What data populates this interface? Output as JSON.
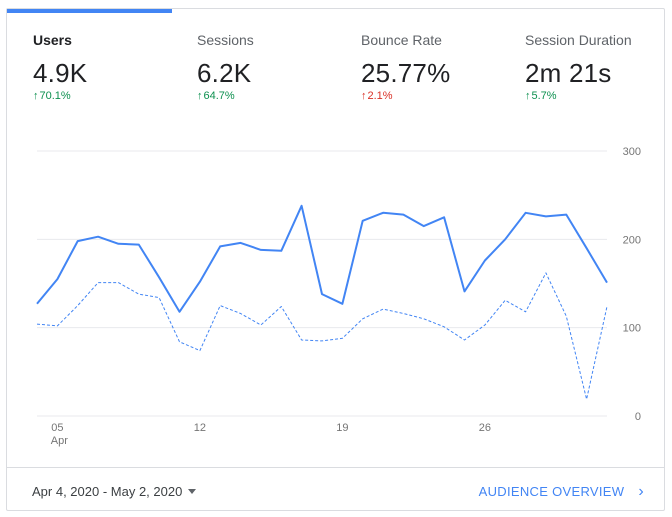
{
  "metrics": [
    {
      "label": "Users",
      "value": "4.9K",
      "delta": "70.1%",
      "direction": "up",
      "active": true
    },
    {
      "label": "Sessions",
      "value": "6.2K",
      "delta": "64.7%",
      "direction": "up",
      "active": false
    },
    {
      "label": "Bounce Rate",
      "value": "25.77%",
      "delta": "2.1%",
      "direction": "up_bad",
      "active": false
    },
    {
      "label": "Session Duration",
      "value": "2m 21s",
      "delta": "5.7%",
      "direction": "up",
      "active": false
    }
  ],
  "colors": {
    "accent": "#4285f4",
    "positive": "#0d904f",
    "negative": "#d93025",
    "grid": "#e8eaed"
  },
  "chart_data": {
    "type": "line",
    "x": [
      "Apr 4",
      "Apr 5",
      "Apr 6",
      "Apr 7",
      "Apr 8",
      "Apr 9",
      "Apr 10",
      "Apr 11",
      "Apr 12",
      "Apr 13",
      "Apr 14",
      "Apr 15",
      "Apr 16",
      "Apr 17",
      "Apr 18",
      "Apr 19",
      "Apr 20",
      "Apr 21",
      "Apr 22",
      "Apr 23",
      "Apr 24",
      "Apr 25",
      "Apr 26",
      "Apr 27",
      "Apr 28",
      "Apr 29",
      "Apr 30",
      "May 1",
      "May 2"
    ],
    "x_tick_labels": [
      {
        "label": "05",
        "sublabel": "Apr",
        "index": 1
      },
      {
        "label": "12",
        "sublabel": "",
        "index": 8
      },
      {
        "label": "19",
        "sublabel": "",
        "index": 15
      },
      {
        "label": "26",
        "sublabel": "",
        "index": 22
      }
    ],
    "y_ticks": [
      "0",
      "100",
      "200",
      "300"
    ],
    "ylim": [
      0,
      300
    ],
    "grid": true,
    "series": [
      {
        "name": "",
        "style": "solid",
        "values": [
          127,
          155,
          198,
          203,
          195,
          194,
          157,
          118,
          152,
          192,
          196,
          188,
          187,
          238,
          138,
          127,
          221,
          230,
          228,
          215,
          225,
          141,
          176,
          200,
          230,
          226,
          228,
          190,
          151
        ]
      },
      {
        "name": "",
        "style": "dashed",
        "values": [
          104,
          102,
          125,
          151,
          151,
          138,
          134,
          84,
          74,
          125,
          116,
          103,
          124,
          86,
          85,
          88,
          110,
          121,
          116,
          110,
          101,
          86,
          103,
          131,
          118,
          162,
          113,
          19,
          124
        ]
      }
    ]
  },
  "footer": {
    "date_range": "Apr 4, 2020 - May 2, 2020",
    "overview_link": "AUDIENCE OVERVIEW"
  }
}
